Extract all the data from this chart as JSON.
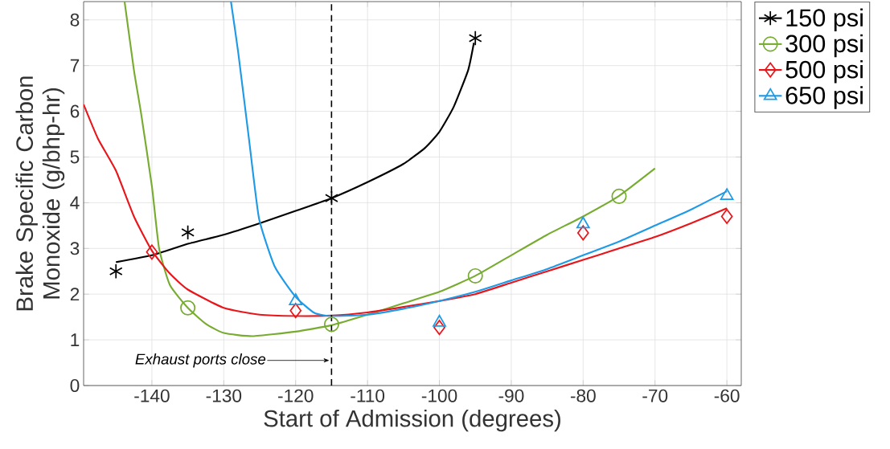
{
  "chart_data": {
    "type": "scatter",
    "xlabel": "Start of Admission (degrees)",
    "ylabel": "Brake Specific Carbon Monoxide (g/bhp-hr)",
    "xlim": [
      -149.5,
      -58
    ],
    "ylim": [
      0,
      8.4
    ],
    "xticks": [
      -140,
      -130,
      -120,
      -110,
      -100,
      -90,
      -80,
      -70,
      -60
    ],
    "yticks": [
      0,
      1,
      2,
      3,
      4,
      5,
      6,
      7,
      8
    ],
    "grid": true,
    "legend": "top right",
    "series": [
      {
        "name": "150 psi",
        "marker": "cross",
        "color": "#000000",
        "x": [
          -145,
          -135,
          -115,
          -95
        ],
        "values": [
          2.5,
          3.35,
          4.1,
          7.6
        ]
      },
      {
        "name": "300 psi",
        "marker": "circle",
        "color": "#77ac30",
        "x": [
          -135,
          -115,
          -95,
          -75
        ],
        "values": [
          1.7,
          1.34,
          2.4,
          4.14
        ]
      },
      {
        "name": "500 psi",
        "marker": "diamond",
        "color": "#e8161b",
        "x": [
          -140,
          -120,
          -100,
          -80,
          -60
        ],
        "values": [
          2.92,
          1.64,
          1.27,
          3.34,
          3.7
        ]
      },
      {
        "name": "650 psi",
        "marker": "triangle",
        "color": "#1e9ae6",
        "x": [
          -120,
          -100,
          -80,
          -60
        ],
        "values": [
          1.85,
          1.38,
          3.53,
          4.15
        ]
      },
      {
        "type": "line",
        "color": "#000000",
        "x": [
          -145,
          -140,
          -135,
          -130,
          -125,
          -120,
          -115,
          -110,
          -105,
          -102,
          -100,
          -98,
          -96,
          -95.2
        ],
        "values": [
          2.7,
          2.85,
          3.1,
          3.3,
          3.55,
          3.82,
          4.1,
          4.45,
          4.85,
          5.2,
          5.55,
          6.1,
          6.9,
          7.5
        ]
      },
      {
        "type": "line",
        "color": "#77ac30",
        "x": [
          -143.8,
          -142.5,
          -141.5,
          -140,
          -139,
          -137.5,
          -135,
          -132.5,
          -130,
          -126,
          -120,
          -115,
          -110,
          -105,
          -100,
          -95,
          -90,
          -85,
          -80,
          -75,
          -70
        ],
        "values": [
          8.4,
          6.9,
          5.95,
          4.36,
          3.0,
          2.2,
          1.7,
          1.35,
          1.15,
          1.08,
          1.18,
          1.32,
          1.55,
          1.8,
          2.05,
          2.4,
          2.85,
          3.3,
          3.7,
          4.15,
          4.75
        ]
      },
      {
        "type": "line",
        "color": "#e8161b",
        "x": [
          -149.5,
          -147.5,
          -145,
          -142.5,
          -140,
          -137.5,
          -135,
          -130,
          -125,
          -120,
          -115,
          -110,
          -105,
          -100,
          -95,
          -90,
          -85,
          -80,
          -75,
          -70,
          -65,
          -60
        ],
        "values": [
          6.15,
          5.4,
          4.7,
          3.7,
          2.95,
          2.45,
          2.1,
          1.7,
          1.55,
          1.52,
          1.53,
          1.6,
          1.72,
          1.85,
          2.0,
          2.25,
          2.5,
          2.75,
          3.0,
          3.25,
          3.55,
          3.88
        ]
      },
      {
        "type": "line",
        "color": "#1e9ae6",
        "x": [
          -129,
          -128,
          -126.5,
          -125.1,
          -122.9,
          -120,
          -117.4,
          -115,
          -110,
          -105,
          -100,
          -95,
          -90,
          -85,
          -80,
          -75,
          -70,
          -65,
          -60
        ],
        "values": [
          8.4,
          7.3,
          5.4,
          3.66,
          2.6,
          1.94,
          1.59,
          1.52,
          1.55,
          1.68,
          1.85,
          2.05,
          2.3,
          2.55,
          2.85,
          3.15,
          3.5,
          3.85,
          4.25
        ]
      }
    ],
    "ref_lines": [
      {
        "axis": "x",
        "value": -115,
        "color": "#000000",
        "line_style": "dashed",
        "label": "Exhaust ports close"
      }
    ]
  }
}
